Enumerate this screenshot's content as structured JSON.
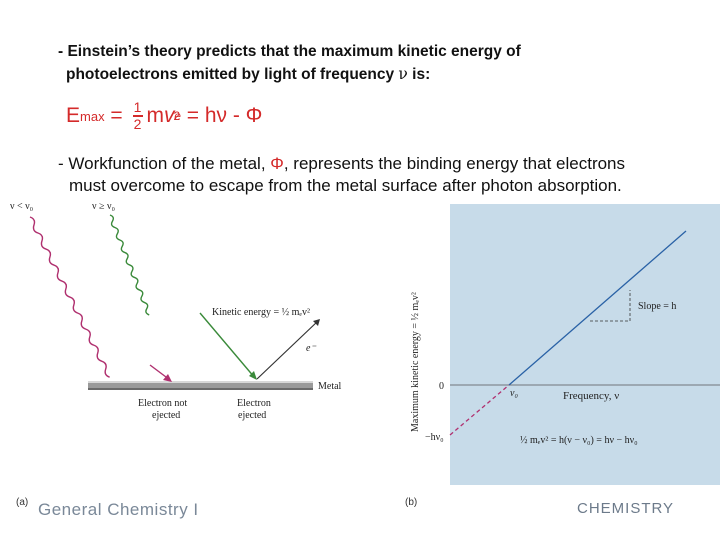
{
  "bullet1": {
    "line1": "- Einstein’s theory predicts that the maximum kinetic energy of",
    "line2_before": "photoelectrons emitted by light of frequency ",
    "nu": "ν",
    "line2_after": " is:"
  },
  "equation": {
    "lhs": "E",
    "lhs_sub": "max",
    "eq1": " = ",
    "frac_num": "1",
    "frac_den": "2",
    "m": "m",
    "v": "v",
    "v_sup": "2",
    "v_sub": "e",
    "rhs": " = hν - Φ"
  },
  "bullet2": {
    "line1_before": "- Workfunction of the metal, ",
    "phi": "Φ",
    "line1_after": ", represents the binding energy that electrons",
    "line2": "must overcome to escape from the metal surface after photon absorption."
  },
  "figure_a": {
    "label": "(a)",
    "wave1_label": "ν < ν₀",
    "wave2_label": "ν ≥ ν₀",
    "kinetic_energy": "Kinetic energy = ½ mₑv²",
    "electron": "e⁻",
    "metal": "Metal",
    "not_ejected_1": "Electron not",
    "not_ejected_2": "ejected",
    "ejected_1": "Electron",
    "ejected_2": "ejected"
  },
  "figure_b": {
    "label": "(b)",
    "ylabel": "Maximum kinetic energy = ½ mₑv²",
    "zero": "0",
    "neg": "−hν₀",
    "nu0": "ν₀",
    "xlabel": "Frequency, ν",
    "slope": "Slope = h",
    "equation": "½ mₑv² = h(ν − ν₀) = hν − hν₀"
  },
  "footer": {
    "left": "General Chemistry I",
    "right": "CHEMISTRY"
  },
  "colors": {
    "equation": "#d42a2a",
    "wave_red": "#b0306f",
    "wave_green": "#3a8a3a",
    "panel_bg": "#c7dbe9",
    "line_blue": "#2a62a6",
    "line_dash": "#b0306f"
  }
}
